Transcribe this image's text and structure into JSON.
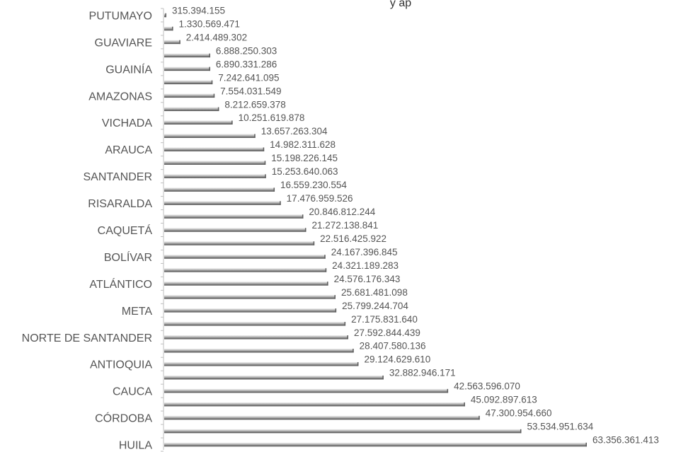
{
  "chart_data": {
    "type": "bar",
    "orientation": "horizontal",
    "title_fragment": "y  ap",
    "categories": [
      "PUTUMAYO",
      "",
      "GUAVIARE",
      "",
      "GUAINÍA",
      "",
      "AMAZONAS",
      "",
      "VICHADA",
      "",
      "ARAUCA",
      "",
      "SANTANDER",
      "",
      "RISARALDA",
      "",
      "CAQUETÁ",
      "",
      "BOLÍVAR",
      "",
      "ATLÁNTICO",
      "",
      "META",
      "",
      "NORTE DE SANTANDER",
      "",
      "ANTIOQUIA",
      "",
      "CAUCA",
      "",
      "CÓRDOBA",
      "",
      "HUILA"
    ],
    "values": [
      315394155,
      1330569471,
      2414489302,
      6888250303,
      6890331286,
      7242641095,
      7554031549,
      8212659378,
      10251619878,
      13657263304,
      14982311628,
      15198226145,
      15253640063,
      16559230554,
      17476959526,
      20846812244,
      21272138841,
      22516425922,
      24167396845,
      24321189283,
      24576176343,
      25681481098,
      25799244704,
      27175831640,
      27592844439,
      28407580136,
      29124629610,
      32882946171,
      42563596070,
      45092897613,
      47300954660,
      53534951634,
      63356361413
    ],
    "value_labels": [
      "315.394.155",
      "1.330.569.471",
      "2.414.489.302",
      "6.888.250.303",
      "6.890.331.286",
      "7.242.641.095",
      "7.554.031.549",
      "8.212.659.378",
      "10.251.619.878",
      "13.657.263.304",
      "14.982.311.628",
      "15.198.226.145",
      "15.253.640.063",
      "16.559.230.554",
      "17.476.959.526",
      "20.846.812.244",
      "21.272.138.841",
      "22.516.425.922",
      "24.167.396.845",
      "24.321.189.283",
      "24.576.176.343",
      "25.681.481.098",
      "25.799.244.704",
      "27.175.831.640",
      "27.592.844.439",
      "28.407.580.136",
      "29.124.629.610",
      "32.882.946.171",
      "42.563.596.070",
      "45.092.897.613",
      "47.300.954.660",
      "53.534.951.634",
      "63.356.361.413"
    ],
    "xlim": [
      0,
      63356361413
    ],
    "grid": false,
    "legend": "none",
    "colors": {
      "bar_dark": "#5e5e5e",
      "bar_light": "#f2f2f2",
      "axis": "#bfbfbf",
      "text": "#555555"
    }
  }
}
